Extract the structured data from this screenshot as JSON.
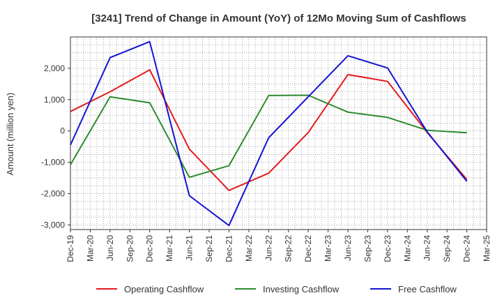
{
  "chart_data": {
    "type": "line",
    "title": "[3241]  Trend of Change in Amount (YoY) of 12Mo Moving Sum of Cashflows",
    "xlabel": "",
    "ylabel": "Amount (million yen)",
    "ylim": [
      -3150,
      3000
    ],
    "yticks": [
      2000,
      1000,
      0,
      -1000,
      -2000,
      -3000
    ],
    "ytick_labels": [
      "2,000",
      "1,000",
      "0",
      "-1,000",
      "-2,000",
      "-3,000"
    ],
    "categories": [
      "Dec-19",
      "Mar-20",
      "Jun-20",
      "Sep-20",
      "Dec-20",
      "Mar-21",
      "Jun-21",
      "Sep-21",
      "Dec-21",
      "Mar-22",
      "Jun-22",
      "Sep-22",
      "Dec-22",
      "Mar-23",
      "Jun-23",
      "Sep-23",
      "Dec-23",
      "Mar-24",
      "Jun-24",
      "Sep-24",
      "Dec-24",
      "Mar-25"
    ],
    "grid": true,
    "legend_position": "bottom",
    "series": [
      {
        "name": "Operating Cashflow",
        "color": "#e41a1c",
        "x": [
          "Dec-19",
          "Jun-20",
          "Dec-20",
          "Jun-21",
          "Dec-21",
          "Jun-22",
          "Dec-22",
          "Jun-23",
          "Dec-23",
          "Jun-24",
          "Dec-24"
        ],
        "values": [
          620,
          1250,
          1950,
          -580,
          -1900,
          -1350,
          -50,
          1800,
          1580,
          -50,
          -1550
        ]
      },
      {
        "name": "Investing Cashflow",
        "color": "#2e8b2e",
        "x": [
          "Dec-19",
          "Jun-20",
          "Dec-20",
          "Jun-21",
          "Dec-21",
          "Jun-22",
          "Dec-22",
          "Jun-23",
          "Dec-23",
          "Jun-24",
          "Dec-24"
        ],
        "values": [
          -1080,
          1090,
          900,
          -1480,
          -1110,
          1130,
          1140,
          600,
          430,
          20,
          -60
        ]
      },
      {
        "name": "Free Cashflow",
        "color": "#1414d2",
        "x": [
          "Dec-19",
          "Jun-20",
          "Dec-20",
          "Jun-21",
          "Dec-21",
          "Jun-22",
          "Dec-22",
          "Jun-23",
          "Dec-23",
          "Jun-24",
          "Dec-24"
        ],
        "values": [
          -450,
          2340,
          2850,
          -2070,
          -3020,
          -220,
          1090,
          2400,
          2010,
          -30,
          -1610
        ]
      }
    ]
  }
}
